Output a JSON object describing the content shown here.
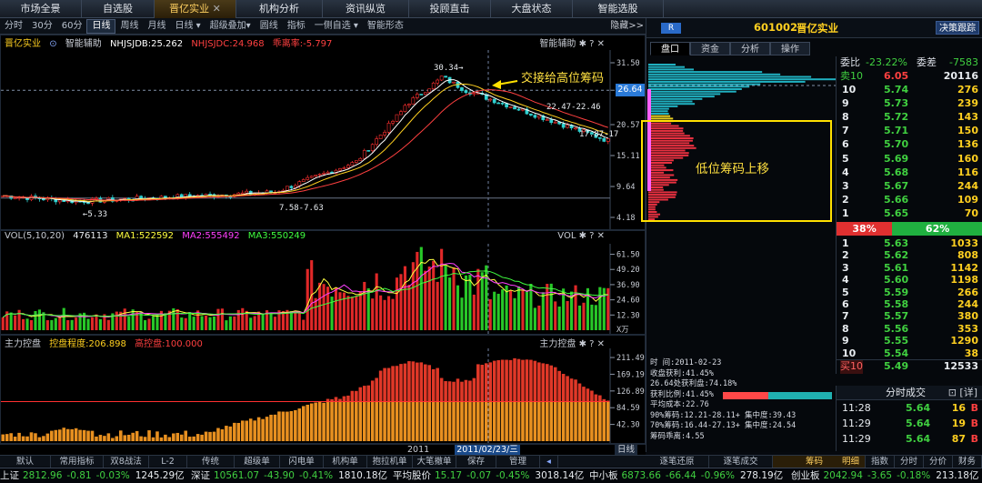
{
  "top_nav": [
    {
      "label": "市场全景",
      "icon": "⊡"
    },
    {
      "label": "自选股",
      "icon": ""
    },
    {
      "label": "晋亿实业",
      "icon": ""
    },
    {
      "label": "机构分析",
      "icon": ""
    },
    {
      "label": "资讯纵览",
      "icon": ""
    },
    {
      "label": "投顾直击",
      "icon": ""
    },
    {
      "label": "大盘状态",
      "icon": ""
    },
    {
      "label": "智能选股",
      "icon": ""
    }
  ],
  "toolbar": {
    "items": [
      "分时",
      "30分",
      "60分",
      "日线",
      "周线",
      "月线",
      "日线 ▾",
      "超级叠加▾",
      "圆线",
      "指标",
      "一侧自选 ▾",
      "智能形态"
    ],
    "active": "日线",
    "hide_label": "隐藏>>"
  },
  "main_chart": {
    "stock_label": "晋亿实业",
    "helper": "智能辅助",
    "ma_labels": [
      {
        "text": "NHJSJDB:25.262",
        "color": "#ffffff"
      },
      {
        "text": "NHJSJDC:24.968",
        "color": "#ff4040"
      },
      {
        "text": "乖离率:-5.797",
        "color": "#ff4040"
      }
    ],
    "right_header": "智能辅助 ✱ ? ✕",
    "y_ticks": [
      "31.50",
      "26.64",
      "20.57",
      "15.11",
      "9.64",
      "4.18"
    ],
    "current_price": "26.64",
    "annotations": {
      "high": "30.34",
      "low": "5.33",
      "range1": "7.58-7.63",
      "range2": "22.47-22.46",
      "range3": "17.87-17",
      "callout": "交接给高位筹码"
    }
  },
  "volume_chart": {
    "label": "VOL(5,10,20)",
    "vol_value": "476113",
    "ma_labels": [
      {
        "text": "MA1:522592",
        "color": "#ffff40"
      },
      {
        "text": "MA2:555492",
        "color": "#ff40ff"
      },
      {
        "text": "MA3:550249",
        "color": "#40ff40"
      }
    ],
    "right_header": "VOL ✱ ? ✕",
    "y_ticks": [
      "61.50",
      "49.20",
      "36.90",
      "24.60",
      "12.30"
    ],
    "unit": "X万"
  },
  "control_chart": {
    "label": "主力控盘",
    "degree": "控盘程度:206.898",
    "high_control": "高控盘:100.000",
    "right_header": "主力控盘 ✱ ? ✕",
    "y_ticks": [
      "211.49",
      "169.19",
      "126.89",
      "84.59",
      "42.30"
    ]
  },
  "x_axis": {
    "year": "2011",
    "date_cursor": "2011/02/23/三",
    "period": "日线"
  },
  "right_panel": {
    "badge": "R",
    "code": "601002",
    "name": "晋亿实业",
    "decision_btn": "决策跟踪",
    "tabs": [
      "盘口",
      "资金",
      "分析",
      "操作"
    ],
    "active_tab": "盘口",
    "chip_note": "低位筹码上移",
    "webi": {
      "label": "委比",
      "value": "-23.22%",
      "diff_label": "委差",
      "diff": "-7583"
    },
    "sell_header": {
      "label": "卖10",
      "price": "6.05",
      "vol": "20116"
    },
    "sells": [
      {
        "lvl": "10",
        "price": "5.74",
        "vol": "276"
      },
      {
        "lvl": "9",
        "price": "5.73",
        "vol": "239"
      },
      {
        "lvl": "8",
        "price": "5.72",
        "vol": "143"
      },
      {
        "lvl": "7",
        "price": "5.71",
        "vol": "150"
      },
      {
        "lvl": "6",
        "price": "5.70",
        "vol": "136"
      },
      {
        "lvl": "5",
        "price": "5.69",
        "vol": "160"
      },
      {
        "lvl": "4",
        "price": "5.68",
        "vol": "116"
      },
      {
        "lvl": "3",
        "price": "5.67",
        "vol": "244"
      },
      {
        "lvl": "2",
        "price": "5.66",
        "vol": "109"
      },
      {
        "lvl": "1",
        "price": "5.65",
        "vol": "70"
      }
    ],
    "ratio": {
      "buy": "38%",
      "sell": "62%",
      "buy_fraction": 0.38
    },
    "buys": [
      {
        "lvl": "1",
        "price": "5.63",
        "vol": "1033"
      },
      {
        "lvl": "2",
        "price": "5.62",
        "vol": "808"
      },
      {
        "lvl": "3",
        "price": "5.61",
        "vol": "1142"
      },
      {
        "lvl": "4",
        "price": "5.60",
        "vol": "1198"
      },
      {
        "lvl": "5",
        "price": "5.59",
        "vol": "266"
      },
      {
        "lvl": "6",
        "price": "5.58",
        "vol": "244"
      },
      {
        "lvl": "7",
        "price": "5.57",
        "vol": "380"
      },
      {
        "lvl": "8",
        "price": "5.56",
        "vol": "353"
      },
      {
        "lvl": "9",
        "price": "5.55",
        "vol": "1290"
      },
      {
        "lvl": "10",
        "price": "5.54",
        "vol": "38"
      }
    ],
    "buy_footer": {
      "label": "买10",
      "price": "5.49",
      "vol": "12533"
    },
    "chip_info": [
      "时      间:2011-02-23",
      "收盘获利:41.45%",
      "26.64处获利盘:74.18%",
      "获利比例:41.45%",
      "平均成本:22.76",
      "90%筹码:12.21-28.11+ 集中度:39.43",
      "70%筹码:16.44-27.13+ 集中度:24.54",
      "筹码乖离:4.55"
    ],
    "trades_title": "分时成交",
    "trades_detail": "[详]",
    "trades": [
      {
        "time": "11:28",
        "price": "5.64",
        "vol": "16",
        "side": "B"
      },
      {
        "time": "11:29",
        "price": "5.64",
        "vol": "19",
        "side": "B"
      },
      {
        "time": "11:29",
        "price": "5.64",
        "vol": "87",
        "side": "B"
      }
    ]
  },
  "bottom_toolbar": {
    "left": [
      "默认",
      "常用指标",
      "双8战法",
      "L-2",
      "传统",
      "超级单",
      "闪电单",
      "机构单",
      "抱拉机单",
      "大笔撤单",
      "保存",
      "管理"
    ],
    "middle": [
      "逐笔还原",
      "逐笔成交",
      "筹码"
    ],
    "active_middle": "筹码",
    "right": [
      "明细",
      "指数",
      "分时",
      "分价",
      "财务"
    ],
    "active_right": "明细"
  },
  "ticker": [
    {
      "name": "上证",
      "price": "2812.96",
      "chg": "-0.81",
      "pct": "-0.03%",
      "amt": "1245.29亿"
    },
    {
      "name": "深证",
      "price": "10561.07",
      "chg": "-43.90",
      "pct": "-0.41%",
      "amt": "1810.18亿"
    },
    {
      "name": "平均股价",
      "price": "15.17",
      "chg": "-0.07",
      "pct": "-0.45%",
      "amt": "3018.14亿"
    },
    {
      "name": "中小板",
      "price": "6873.66",
      "chg": "-66.44",
      "pct": "-0.96%",
      "amt": "278.19亿"
    },
    {
      "name": "创业板",
      "price": "2042.94",
      "chg": "-3.65",
      "pct": "-0.18%",
      "amt": "213.18亿"
    }
  ],
  "colors": {
    "up": "#ff3030",
    "down": "#30d030",
    "accent": "#ffd020",
    "cyan": "#20b0c0",
    "highlight_box": "#ffe000"
  }
}
